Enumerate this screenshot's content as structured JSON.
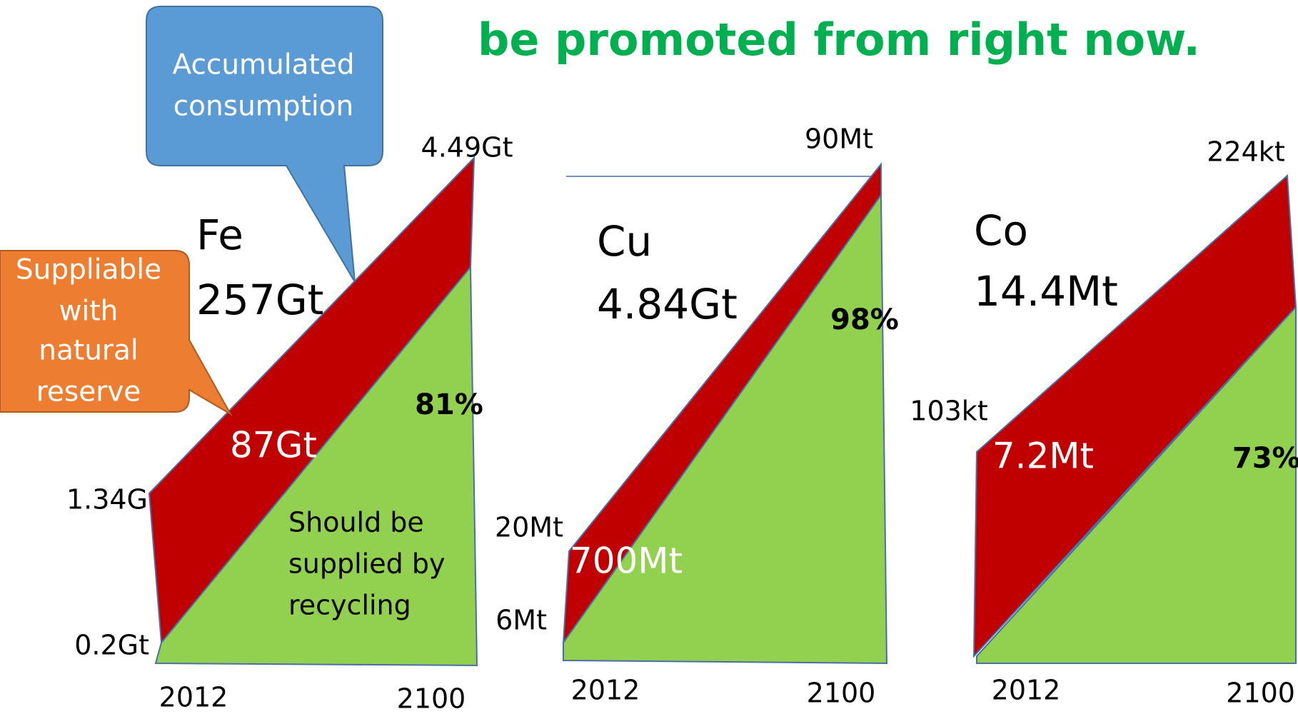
{
  "title": "be promoted from right now.",
  "callouts": {
    "accumulated": [
      "Accumulated",
      "consumption"
    ],
    "natural": [
      "Suppliable",
      "with",
      "natural",
      "reserve"
    ]
  },
  "panels": [
    {
      "element": "Fe",
      "total": "257Gt",
      "end_top": "4.49Gt",
      "start_top": "1.34G",
      "start_bottom": "0.2Gt",
      "red_label": "87Gt",
      "percent": "81%",
      "note": [
        "Should be",
        "supplied by",
        "recycling"
      ],
      "years": [
        "2012",
        "2100"
      ]
    },
    {
      "element": "Cu",
      "total": "4.84Gt",
      "end_top": "90Mt",
      "start_top": "20Mt",
      "start_bottom": "6Mt",
      "red_label": "700Mt",
      "percent": "98%",
      "years": [
        "2012",
        "2100"
      ]
    },
    {
      "element": "Co",
      "total": "14.4Mt",
      "end_top": "224kt",
      "start_top": "103kt",
      "red_label": "7.2Mt",
      "percent": "73%",
      "years": [
        "2012",
        "2100"
      ]
    }
  ]
}
